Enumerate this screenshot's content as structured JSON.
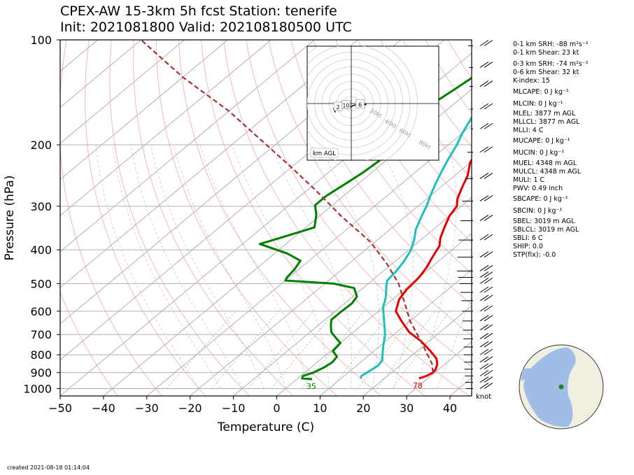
{
  "header": {
    "title_line1": "CPEX-AW 15-3km  5h fcst  Station: tenerife",
    "title_line2": "Init: 2021081800  Valid: 202108180500 UTC"
  },
  "footer": {
    "created": "created 2021-08-18 01:14:04"
  },
  "indices": [
    "0-1 km SRH: -88 m²s⁻²",
    "0-1 km Shear: 23 kt",
    "0-3 km SRH: -74 m²s⁻²",
    "0-6 km Shear: 32 kt",
    "K-index: 15",
    "MLCAPE: 0 J kg⁻¹",
    "MLCIN: 0 J kg⁻¹",
    "MLEL: 3877 m AGL",
    "MLLCL: 3877 m AGL",
    "MLLI: 4 C",
    "MUCAPE: 0 J kg⁻¹",
    "MUCIN: 0 J kg⁻¹",
    "MUEL: 4348 m AGL",
    "MULCL: 4348 m AGL",
    "MULI: 1 C",
    "PWV: 0.49 inch",
    "SBCAPE: 0 J kg⁻¹",
    "SBCIN: 0 J kg⁻¹",
    "SBEL: 3019 m AGL",
    "SBLCL: 3019 m AGL",
    "SBLI: 6 C",
    "SHIP: 0.0",
    "STP(fix): -0.0"
  ],
  "chart_data": [
    {
      "type": "line",
      "kind": "skew-T log-p",
      "xlabel": "Temperature (C)",
      "ylabel": "Pressure (hPa)",
      "xlim": [
        -50,
        45
      ],
      "ylim": [
        1050,
        100
      ],
      "y_scale": "log",
      "x_ticks": [
        -50,
        -40,
        -30,
        -20,
        -10,
        0,
        10,
        20,
        30,
        40
      ],
      "y_ticks": [
        100,
        200,
        300,
        400,
        500,
        600,
        700,
        800,
        900,
        1000
      ],
      "grid": true,
      "surface_labels": {
        "temperature": "78",
        "dewpoint": "35"
      },
      "wind_unit_label": "knot",
      "series": [
        {
          "role": "temperature",
          "color": "#e60000",
          "points": [
            [
              28,
              935
            ],
            [
              29,
              920
            ],
            [
              29.6,
              900
            ],
            [
              29.3,
              880
            ],
            [
              28.2,
              850
            ],
            [
              26.5,
              820
            ],
            [
              23,
              780
            ],
            [
              18,
              730
            ],
            [
              13,
              690
            ],
            [
              8,
              640
            ],
            [
              4,
              600
            ],
            [
              1.5,
              555
            ],
            [
              0.5,
              520
            ],
            [
              0,
              480
            ],
            [
              -1,
              450
            ],
            [
              -2,
              430
            ],
            [
              -3,
              410
            ],
            [
              -4,
              390
            ],
            [
              -6,
              370
            ],
            [
              -8,
              345
            ],
            [
              -10,
              320
            ],
            [
              -11,
              300
            ],
            [
              -13,
              285
            ],
            [
              -15,
              265
            ],
            [
              -17,
              245
            ],
            [
              -20,
              225
            ],
            [
              -22,
              205
            ],
            [
              -24,
              185
            ],
            [
              -25.5,
              170
            ],
            [
              -27,
              158
            ],
            [
              -29,
              142
            ],
            [
              -30.5,
              132
            ],
            [
              -32,
              125
            ],
            [
              -30,
              110
            ],
            [
              -28,
              100
            ]
          ]
        },
        {
          "role": "dewpoint",
          "color": "#1fbfbf",
          "points": [
            [
              14.5,
              935
            ],
            [
              14,
              920
            ],
            [
              14.5,
              890
            ],
            [
              15,
              860
            ],
            [
              14.5,
              830
            ],
            [
              13,
              800
            ],
            [
              11,
              760
            ],
            [
              8,
              700
            ],
            [
              4,
              640
            ],
            [
              0,
              585
            ],
            [
              -2,
              550
            ],
            [
              -5,
              510
            ],
            [
              -6.5,
              490
            ],
            [
              -7,
              460
            ],
            [
              -8,
              430
            ],
            [
              -9.5,
              400
            ],
            [
              -11.5,
              375
            ],
            [
              -14,
              350
            ],
            [
              -16,
              325
            ],
            [
              -18,
              300
            ],
            [
              -20,
              280
            ],
            [
              -22,
              260
            ],
            [
              -24,
              240
            ],
            [
              -26,
              220
            ],
            [
              -28,
              200
            ],
            [
              -30,
              185
            ],
            [
              -32,
              168
            ],
            [
              -34.5,
              150
            ],
            [
              -37,
              130
            ],
            [
              -35,
              110
            ],
            [
              -32,
              100
            ]
          ]
        },
        {
          "role": "humidity",
          "color": "#008000",
          "points": [
            [
              3.5,
              940
            ],
            [
              1,
              935
            ],
            [
              0.5,
              920
            ],
            [
              2,
              900
            ],
            [
              3,
              870
            ],
            [
              3.5,
              840
            ],
            [
              3,
              810
            ],
            [
              0.5,
              780
            ],
            [
              0,
              740
            ],
            [
              -2,
              720
            ],
            [
              -5,
              690
            ],
            [
              -7,
              660
            ],
            [
              -8.5,
              635
            ],
            [
              -8.5,
              600
            ],
            [
              -8.3,
              570
            ],
            [
              -9,
              545
            ],
            [
              -12,
              515
            ],
            [
              -18,
              500
            ],
            [
              -30,
              490
            ],
            [
              -30.5,
              480
            ],
            [
              -31,
              455
            ],
            [
              -32,
              430
            ],
            [
              -37,
              410
            ],
            [
              -46,
              385
            ],
            [
              -38,
              345
            ],
            [
              -41,
              318
            ],
            [
              -44,
              298
            ],
            [
              -44,
              280
            ],
            [
              -43,
              260
            ],
            [
              -42,
              240
            ],
            [
              -41.5,
              222
            ],
            [
              -44,
              205
            ],
            [
              -46,
              188
            ],
            [
              -46,
              165
            ],
            [
              -44,
              140
            ],
            [
              -42,
              115
            ],
            [
              -40,
              100
            ]
          ]
        },
        {
          "role": "parcel",
          "color": "#a83232",
          "dashed": true,
          "points": [
            [
              29.6,
              900
            ],
            [
              27,
              850
            ],
            [
              18,
              730
            ],
            [
              10,
              640
            ],
            [
              3,
              560
            ],
            [
              -3,
              500
            ],
            [
              -11,
              440
            ],
            [
              -21,
              380
            ],
            [
              -35,
              320
            ],
            [
              -48,
              270
            ],
            [
              -60,
              232
            ],
            [
              -72,
              200
            ],
            [
              -90,
              160
            ],
            [
              -110,
              128
            ],
            [
              -130,
              100
            ]
          ]
        }
      ]
    },
    {
      "type": "scatter",
      "kind": "hodograph",
      "height_label": "km AGL",
      "rings_kt": [
        20,
        40,
        60,
        80
      ],
      "ring_labels": [
        "20kt",
        "40kt",
        "60kt",
        "80kt"
      ],
      "points": [
        [
          -18,
          -10
        ],
        [
          -20,
          -6
        ],
        [
          -16,
          -2
        ],
        [
          -9,
          3
        ],
        [
          -5,
          -2
        ],
        [
          -3,
          -4
        ],
        [
          -1,
          -4
        ],
        [
          3,
          -2
        ],
        [
          8,
          -1
        ],
        [
          10,
          -1
        ],
        [
          13,
          -2
        ],
        [
          17,
          -1
        ],
        [
          13,
          -1
        ]
      ],
      "labels": [
        {
          "text": "2",
          "x": -15,
          "y": -4
        },
        {
          "text": "10",
          "x": -6,
          "y": -2
        },
        {
          "text": "6",
          "x": 10,
          "y": -1
        }
      ]
    }
  ]
}
